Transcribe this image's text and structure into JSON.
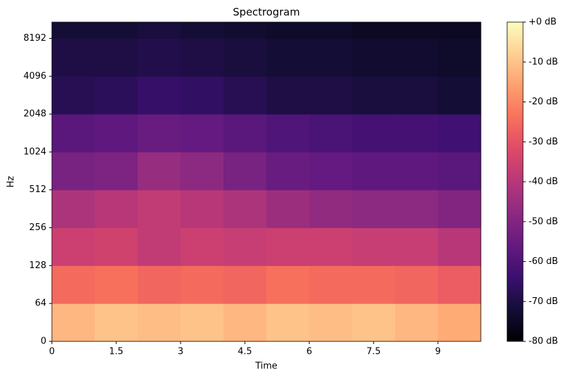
{
  "chart_data": {
    "type": "heatmap",
    "title": "Spectrogram",
    "x_label": "Time",
    "y_label": "Hz",
    "xlim": [
      0,
      10
    ],
    "xticks": [
      0,
      1.5,
      3,
      4.5,
      6,
      7.5,
      9
    ],
    "x_bins": [
      0,
      1,
      2,
      3,
      4,
      5,
      6,
      7,
      8,
      9,
      10
    ],
    "ylim": [
      0,
      11025
    ],
    "yscale": "symlog",
    "yticks": [
      0,
      64,
      128,
      256,
      512,
      1024,
      2048,
      4096,
      8192
    ],
    "colormap": "magma",
    "clim": [
      -80,
      0
    ],
    "colorbar_ticks": [
      {
        "value": 0,
        "label": "+0 dB"
      },
      {
        "value": -10,
        "label": "-10 dB"
      },
      {
        "value": -20,
        "label": "-20 dB"
      },
      {
        "value": -30,
        "label": "-30 dB"
      },
      {
        "value": -40,
        "label": "-40 dB"
      },
      {
        "value": -50,
        "label": "-50 dB"
      },
      {
        "value": -60,
        "label": "-60 dB"
      },
      {
        "value": -70,
        "label": "-70 dB"
      },
      {
        "value": -80,
        "label": "-80 dB"
      }
    ],
    "z": [
      [
        -12,
        -10,
        -11,
        -10,
        -12,
        -10,
        -11,
        -10,
        -12,
        -14
      ],
      [
        -25,
        -24,
        -26,
        -25,
        -26,
        -24,
        -25,
        -25,
        -26,
        -28
      ],
      [
        -36,
        -35,
        -38,
        -36,
        -37,
        -36,
        -36,
        -37,
        -37,
        -40
      ],
      [
        -42,
        -40,
        -38,
        -40,
        -42,
        -45,
        -47,
        -48,
        -48,
        -50
      ],
      [
        -52,
        -51,
        -46,
        -48,
        -52,
        -55,
        -56,
        -57,
        -57,
        -58
      ],
      [
        -58,
        -57,
        -55,
        -56,
        -58,
        -60,
        -61,
        -62,
        -62,
        -63
      ],
      [
        -68,
        -67,
        -65,
        -66,
        -68,
        -70,
        -70,
        -71,
        -71,
        -72
      ],
      [
        -70,
        -70,
        -69,
        -70,
        -71,
        -72,
        -72,
        -73,
        -73,
        -74
      ],
      [
        -72,
        -72,
        -71,
        -72,
        -73,
        -74,
        -74,
        -75,
        -75,
        -75
      ]
    ]
  }
}
